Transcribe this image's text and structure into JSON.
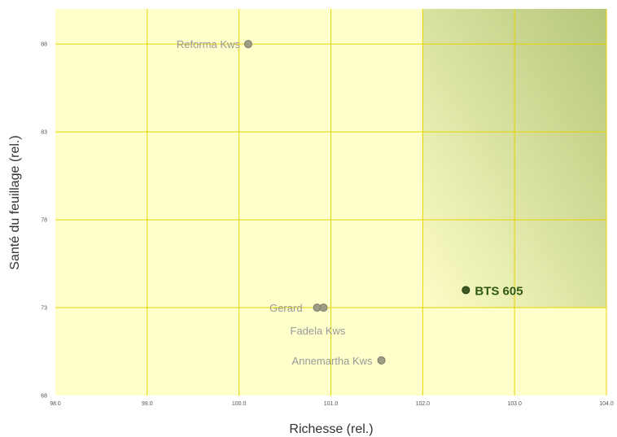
{
  "chart_data": {
    "type": "scatter",
    "xlabel": "Richesse (rel.)",
    "ylabel": "Santé du feuillage  (rel.)",
    "xlim": [
      98.0,
      104.0
    ],
    "ylim": [
      68,
      90
    ],
    "xticks": [
      98.0,
      99.0,
      100.0,
      101.0,
      102.0,
      103.0,
      104.0
    ],
    "xtick_labels": [
      "98.0",
      "99.0",
      "100.0",
      "101.0",
      "102.0",
      "103.0",
      "104.0"
    ],
    "yticks": [
      68,
      73,
      78,
      83,
      88
    ],
    "ytick_labels": [
      "68",
      "73",
      "78",
      "83",
      "88"
    ],
    "grid": true,
    "highlight_region": {
      "x_from": 102.0,
      "y_from": 73
    },
    "colors": {
      "background": "#ffffcc",
      "grid": "#e8d200",
      "highlight_top": "#b5c67a",
      "highlight_bottom": "#fdfdc6",
      "point": "#9e9e86",
      "point_highlight": "#3c5a22"
    },
    "points": [
      {
        "label": "Reforma Kws",
        "x": 100.1,
        "y": 88.0,
        "highlight": false
      },
      {
        "label": "Gerard",
        "x": 100.85,
        "y": 73.0,
        "highlight": false
      },
      {
        "label": "Fadela Kws",
        "x": 100.92,
        "y": 73.0,
        "highlight": false
      },
      {
        "label": "Annemartha Kws",
        "x": 101.55,
        "y": 70.0,
        "highlight": false
      },
      {
        "label": "BTS 605",
        "x": 102.47,
        "y": 74.0,
        "highlight": true
      }
    ]
  }
}
